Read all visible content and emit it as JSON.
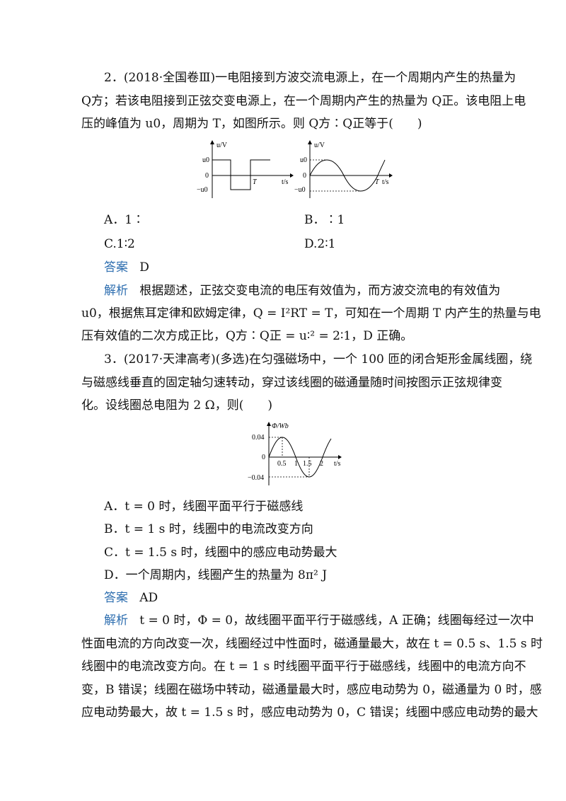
{
  "q2": {
    "line1": "2．(2018·全国卷Ⅲ)一电阻接到方波交流电源上，在一个周期内产生的热量为",
    "line2": "Q方；若该电阻接到正弦交变电源上，在一个周期内产生的热量为 Q正。该电阻上电",
    "line3": "压的峰值为 u0，周期为 T，如图所示。则 Q方∶Q正等于(　　)",
    "fig": {
      "ylabel": "u/V",
      "u0": "u0",
      "neg_u0": "−u0",
      "zero": "0",
      "T": "T",
      "xlabel": "t/s"
    },
    "option_a": "A．1∶",
    "option_b": "B．∶1",
    "option_c": "C.1∶2",
    "option_d": "D.2∶1",
    "answer_label": "答案",
    "answer": "D",
    "analysis_label": "解析",
    "analysis1": "根据题述，正弦交变电流的电压有效值为，而方波交流电的有效值为",
    "analysis2": "u0，根据焦耳定律和欧姆定律，Q = I²RT = T，可知在一个周期 T 内产生的热量与电",
    "analysis3": "压有效值的二次方成正比，Q方∶Q正 = u∶² = 2∶1，D 正确。"
  },
  "q3": {
    "line1": "3．(2017·天津高考)(多选)在匀强磁场中，一个 100 匝的闭合矩形金属线圈，绕",
    "line2": "与磁感线垂直的固定轴匀速转动，穿过该线圈的磁通量随时间按图示正弦规律变",
    "line3": "化。设线圈总电阻为 2 Ω，则(　　)",
    "fig": {
      "ylabel": "Φ/Wb",
      "top": "0.04",
      "bottom": "−0.04",
      "zero": "0",
      "t05": "0.5",
      "t1": "1",
      "t15": "1.5",
      "t2": "2",
      "xlabel": "t/s"
    },
    "option_a": "A．t = 0 时，线圈平面平行于磁感线",
    "option_b": "B．t = 1 s 时，线圈中的电流改变方向",
    "option_c": "C．t = 1.5 s 时，线圈中的感应电动势最大",
    "option_d": "D．一个周期内，线圈产生的热量为 8π² J",
    "answer_label": "答案",
    "answer": "AD",
    "analysis_label": "解析",
    "analysis1": "t = 0 时，Φ = 0，故线圈平面平行于磁感线，A 正确；线圈每经过一次中",
    "analysis2": "性面电流的方向改变一次，线圈经过中性面时，磁通量最大，故在 t = 0.5 s、1.5 s 时",
    "analysis3": "线圈中的电流改变方向。在 t = 1 s 时线圈平面平行于磁感线，线圈中的电流方向不",
    "analysis4": "变，B 错误；线圈在磁场中转动，磁通量最大时，感应电动势为 0，磁通量为 0 时，感",
    "analysis5": "应电动势最大，故 t = 1.5 s 时，感应电动势为 0，C 错误；线圈中感应电动势的最大"
  }
}
